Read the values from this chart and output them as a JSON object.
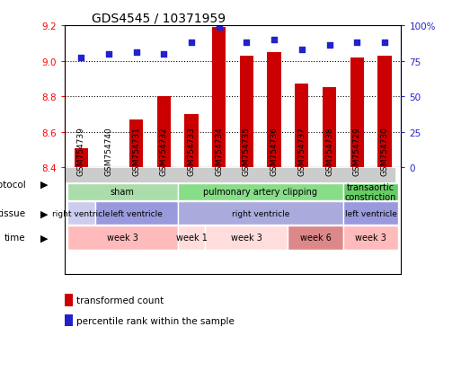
{
  "title": "GDS4545 / 10371959",
  "samples": [
    "GSM754739",
    "GSM754740",
    "GSM754731",
    "GSM754732",
    "GSM754733",
    "GSM754734",
    "GSM754735",
    "GSM754736",
    "GSM754737",
    "GSM754738",
    "GSM754729",
    "GSM754730"
  ],
  "bar_values": [
    8.51,
    8.4,
    8.67,
    8.8,
    8.7,
    9.19,
    9.03,
    9.05,
    8.87,
    8.85,
    9.02,
    9.03
  ],
  "bar_bottom": 8.4,
  "scatter_values": [
    77,
    80,
    81,
    80,
    88,
    99,
    88,
    90,
    83,
    86,
    88,
    88
  ],
  "bar_color": "#cc0000",
  "scatter_color": "#2222cc",
  "ylim_left": [
    8.4,
    9.2
  ],
  "ylim_right": [
    0,
    100
  ],
  "yticks_left": [
    8.4,
    8.6,
    8.8,
    9.0,
    9.2
  ],
  "yticks_right": [
    0,
    25,
    50,
    75,
    100
  ],
  "ytick_labels_right": [
    "0",
    "25",
    "50",
    "75",
    "100%"
  ],
  "grid_lines": [
    8.6,
    8.8,
    9.0
  ],
  "protocol_row": [
    {
      "label": "sham",
      "start": 0,
      "end": 4,
      "color": "#aaddaa"
    },
    {
      "label": "pulmonary artery clipping",
      "start": 4,
      "end": 10,
      "color": "#88dd88"
    },
    {
      "label": "transaortic\nconstriction",
      "start": 10,
      "end": 12,
      "color": "#66cc66"
    }
  ],
  "tissue_row": [
    {
      "label": "right ventricle",
      "start": 0,
      "end": 1,
      "color": "#ccccee"
    },
    {
      "label": "left ventricle",
      "start": 1,
      "end": 4,
      "color": "#9999dd"
    },
    {
      "label": "right ventricle",
      "start": 4,
      "end": 10,
      "color": "#aaaadd"
    },
    {
      "label": "left ventricle",
      "start": 10,
      "end": 12,
      "color": "#9999dd"
    }
  ],
  "time_row": [
    {
      "label": "week 3",
      "start": 0,
      "end": 4,
      "color": "#ffbbbb"
    },
    {
      "label": "week 1",
      "start": 4,
      "end": 5,
      "color": "#ffdddd"
    },
    {
      "label": "week 3",
      "start": 5,
      "end": 8,
      "color": "#ffdddd"
    },
    {
      "label": "week 6",
      "start": 8,
      "end": 10,
      "color": "#dd8888"
    },
    {
      "label": "week 3",
      "start": 10,
      "end": 12,
      "color": "#ffbbbb"
    }
  ],
  "row_labels": [
    "protocol",
    "tissue",
    "time"
  ],
  "legend_bar_label": "transformed count",
  "legend_scatter_label": "percentile rank within the sample",
  "xtick_bg_color": "#cccccc"
}
